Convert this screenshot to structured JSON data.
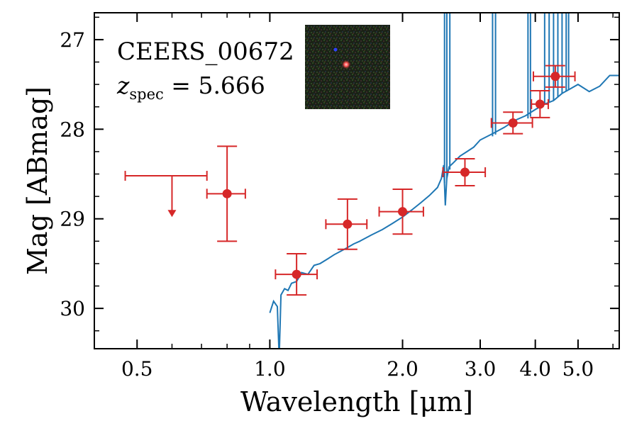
{
  "chart_data": {
    "type": "scatter",
    "title": "CEERS_00672",
    "redshift_label": {
      "z": "z",
      "sub": "spec",
      "rest": " = 5.666"
    },
    "xlabel": "Wavelength [μm]",
    "ylabel": "Mag [ABmag]",
    "xscale": "log",
    "xlim": [
      0.4,
      6.2
    ],
    "ylim": [
      30.45,
      26.7
    ],
    "x_ticks": [
      {
        "value": 0.5,
        "label": "0.5"
      },
      {
        "value": 1.0,
        "label": "1.0"
      },
      {
        "value": 2.0,
        "label": "2.0"
      },
      {
        "value": 3.0,
        "label": "3.0"
      },
      {
        "value": 4.0,
        "label": "4.0"
      },
      {
        "value": 5.0,
        "label": "5.0"
      }
    ],
    "y_ticks": [
      {
        "value": 27,
        "label": "27"
      },
      {
        "value": 28,
        "label": "28"
      },
      {
        "value": 29,
        "label": "29"
      },
      {
        "value": 30,
        "label": "30"
      }
    ],
    "colors": {
      "photometry": "#d62728",
      "sed": "#1f77b4",
      "axes": "#000000"
    },
    "photometry": [
      {
        "x": 0.8,
        "xerr": [
          0.08,
          0.08
        ],
        "y": 28.72,
        "yerr": [
          0.53,
          0.53
        ]
      },
      {
        "x": 1.15,
        "xerr": [
          0.12,
          0.13
        ],
        "y": 29.62,
        "yerr": [
          0.23,
          0.23
        ]
      },
      {
        "x": 1.5,
        "xerr": [
          0.16,
          0.16
        ],
        "y": 29.06,
        "yerr": [
          0.28,
          0.28
        ]
      },
      {
        "x": 2.0,
        "xerr": [
          0.23,
          0.23
        ],
        "y": 28.92,
        "yerr": [
          0.25,
          0.25
        ]
      },
      {
        "x": 2.77,
        "xerr": [
          0.3,
          0.31
        ],
        "y": 28.48,
        "yerr": [
          0.15,
          0.15
        ]
      },
      {
        "x": 3.56,
        "xerr": [
          0.38,
          0.38
        ],
        "y": 27.93,
        "yerr": [
          0.12,
          0.12
        ]
      },
      {
        "x": 4.1,
        "xerr": [
          0.18,
          0.18
        ],
        "y": 27.72,
        "yerr": [
          0.15,
          0.15
        ]
      },
      {
        "x": 4.44,
        "xerr": [
          0.48,
          0.48
        ],
        "y": 27.41,
        "yerr": [
          0.12,
          0.12
        ]
      }
    ],
    "upper_limits": [
      {
        "x": 0.6,
        "xerr": [
          0.13,
          0.12
        ],
        "y": 28.52,
        "arrow_to": 28.98
      }
    ],
    "sed_model": {
      "x": [
        1.0,
        1.02,
        1.04,
        1.05,
        1.06,
        1.08,
        1.1,
        1.12,
        1.15,
        1.18,
        1.22,
        1.26,
        1.3,
        1.35,
        1.4,
        1.45,
        1.5,
        1.55,
        1.6,
        1.7,
        1.8,
        1.9,
        2.0,
        2.1,
        2.2,
        2.3,
        2.4,
        2.45,
        2.48,
        2.5,
        2.52,
        2.55,
        2.6,
        2.7,
        2.8,
        2.9,
        3.0,
        3.2,
        3.4,
        3.6,
        3.8,
        4.0,
        4.2,
        4.4,
        4.6,
        4.8,
        5.0,
        5.3,
        5.6,
        5.9,
        6.2
      ],
      "y": [
        30.05,
        29.92,
        29.98,
        30.55,
        29.85,
        29.78,
        29.8,
        29.72,
        29.7,
        29.6,
        29.62,
        29.52,
        29.5,
        29.45,
        29.4,
        29.36,
        29.32,
        29.28,
        29.25,
        29.18,
        29.12,
        29.05,
        28.98,
        28.9,
        28.82,
        28.74,
        28.65,
        28.55,
        28.4,
        28.85,
        28.55,
        28.42,
        28.38,
        28.3,
        28.25,
        28.2,
        28.12,
        28.05,
        27.98,
        27.9,
        27.85,
        27.78,
        27.72,
        27.68,
        27.6,
        27.55,
        27.5,
        27.58,
        27.52,
        27.4,
        27.4
      ]
    },
    "sed_spikes": [
      {
        "x": 2.49,
        "y_base": 28.6
      },
      {
        "x": 2.52,
        "y_base": 28.55
      },
      {
        "x": 2.56,
        "y_base": 28.45
      },
      {
        "x": 3.2,
        "y_base": 28.08
      },
      {
        "x": 3.25,
        "y_base": 28.06
      },
      {
        "x": 3.85,
        "y_base": 27.88
      },
      {
        "x": 3.9,
        "y_base": 27.86
      },
      {
        "x": 4.2,
        "y_base": 27.72
      },
      {
        "x": 4.3,
        "y_base": 27.7
      },
      {
        "x": 4.4,
        "y_base": 27.68
      },
      {
        "x": 4.5,
        "y_base": 27.64
      },
      {
        "x": 4.6,
        "y_base": 27.6
      },
      {
        "x": 4.7,
        "y_base": 27.58
      },
      {
        "x": 4.76,
        "y_base": 27.56
      }
    ],
    "cutout_image": "RGB postage stamp cutout of the galaxy"
  }
}
